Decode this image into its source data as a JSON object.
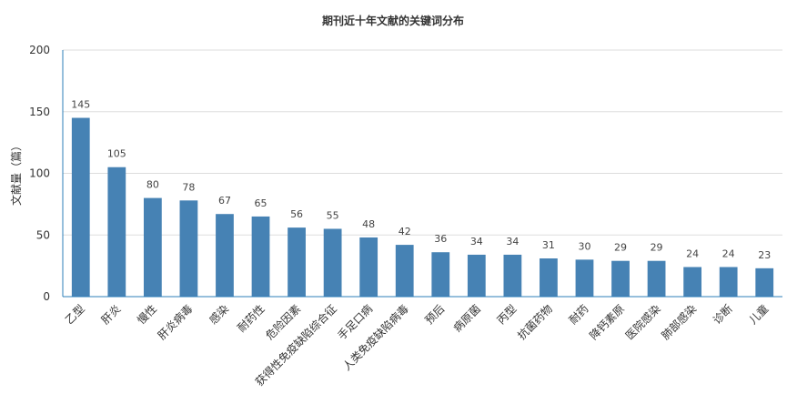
{
  "chart_data": {
    "type": "bar",
    "title": "期刊近十年文献的关键词分布",
    "ylabel": "文献量（篇）",
    "xlabel": "",
    "ylim": [
      0,
      200
    ],
    "yticks": [
      0,
      50,
      100,
      150,
      200
    ],
    "grid": true,
    "legend": "none",
    "bar_color": "#4682b4",
    "categories": [
      "乙型",
      "肝炎",
      "慢性",
      "肝炎病毒",
      "感染",
      "耐药性",
      "危险因素",
      "获得性免疫缺陷综合征",
      "手足口病",
      "人类免疫缺陷病毒",
      "预后",
      "病原菌",
      "丙型",
      "抗菌药物",
      "耐药",
      "降钙素原",
      "医院感染",
      "肺部感染",
      "诊断",
      "儿童"
    ],
    "values": [
      145,
      105,
      80,
      78,
      67,
      65,
      56,
      55,
      48,
      42,
      36,
      34,
      34,
      31,
      30,
      29,
      29,
      24,
      24,
      23
    ]
  }
}
